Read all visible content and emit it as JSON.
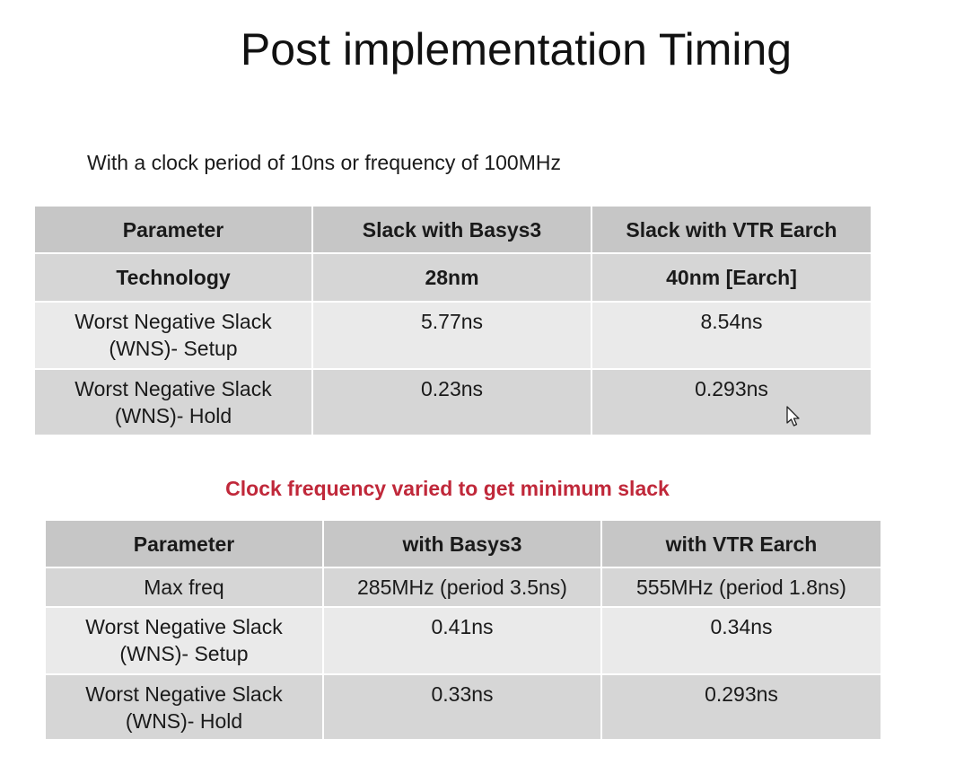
{
  "title": "Post implementation Timing",
  "subtitle": "With a clock period of 10ns or frequency of 100MHz",
  "table1": {
    "headers": [
      "Parameter",
      "Slack with Basys3",
      "Slack with VTR Earch"
    ],
    "rows": [
      [
        "Technology",
        "28nm",
        "40nm [Earch]"
      ],
      [
        "Worst Negative Slack\n(WNS)- Setup",
        "5.77ns",
        "8.54ns"
      ],
      [
        "Worst Negative Slack\n(WNS)- Hold",
        "0.23ns",
        "0.293ns"
      ]
    ]
  },
  "section2_heading": "Clock frequency varied to get minimum slack",
  "table2": {
    "headers": [
      "Parameter",
      "with Basys3",
      "with VTR Earch"
    ],
    "rows": [
      [
        "Max freq",
        "285MHz (period 3.5ns)",
        "555MHz (period 1.8ns)"
      ],
      [
        "Worst Negative Slack\n(WNS)- Setup",
        "0.41ns",
        "0.34ns"
      ],
      [
        "Worst Negative Slack\n(WNS)- Hold",
        "0.33ns",
        "0.293ns"
      ]
    ]
  },
  "colors": {
    "header_bg": "#c6c6c6",
    "row_dark": "#d6d6d6",
    "row_light": "#eaeaea",
    "heading_red": "#c0283a"
  },
  "icons": {
    "cursor": "mouse-pointer-icon"
  }
}
